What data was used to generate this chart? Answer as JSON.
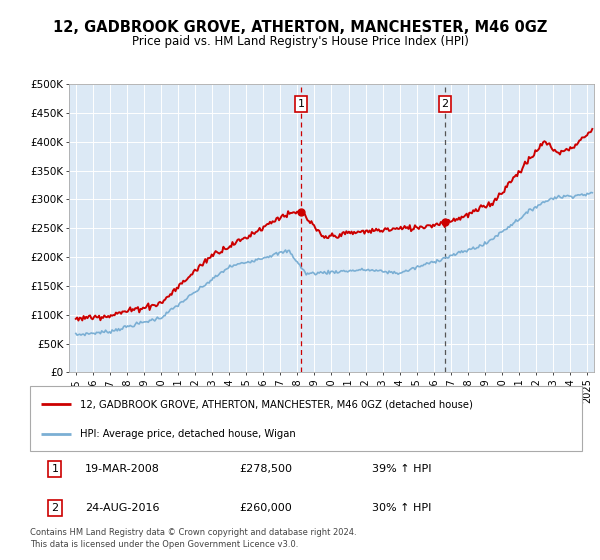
{
  "title": "12, GADBROOK GROVE, ATHERTON, MANCHESTER, M46 0GZ",
  "subtitle": "Price paid vs. HM Land Registry's House Price Index (HPI)",
  "ylabel_ticks": [
    "£0",
    "£50K",
    "£100K",
    "£150K",
    "£200K",
    "£250K",
    "£300K",
    "£350K",
    "£400K",
    "£450K",
    "£500K"
  ],
  "ytick_values": [
    0,
    50000,
    100000,
    150000,
    200000,
    250000,
    300000,
    350000,
    400000,
    450000,
    500000
  ],
  "ylim": [
    0,
    500000
  ],
  "xlim_start": 1994.6,
  "xlim_end": 2025.4,
  "legend_line1": "12, GADBROOK GROVE, ATHERTON, MANCHESTER, M46 0GZ (detached house)",
  "legend_line2": "HPI: Average price, detached house, Wigan",
  "annotation1_label": "1",
  "annotation1_date": "19-MAR-2008",
  "annotation1_price": "£278,500",
  "annotation1_hpi": "39% ↑ HPI",
  "annotation2_label": "2",
  "annotation2_date": "24-AUG-2016",
  "annotation2_price": "£260,000",
  "annotation2_hpi": "30% ↑ HPI",
  "footnote1": "Contains HM Land Registry data © Crown copyright and database right 2024.",
  "footnote2": "This data is licensed under the Open Government Licence v3.0.",
  "red_color": "#cc0000",
  "blue_color": "#7bafd4",
  "marker1_x": 2008.22,
  "marker1_y": 278500,
  "marker2_x": 2016.65,
  "marker2_y": 260000,
  "vline1_x": 2008.22,
  "vline2_x": 2016.65,
  "background_color": "#ffffff",
  "plot_bg_color": "#dce9f5"
}
